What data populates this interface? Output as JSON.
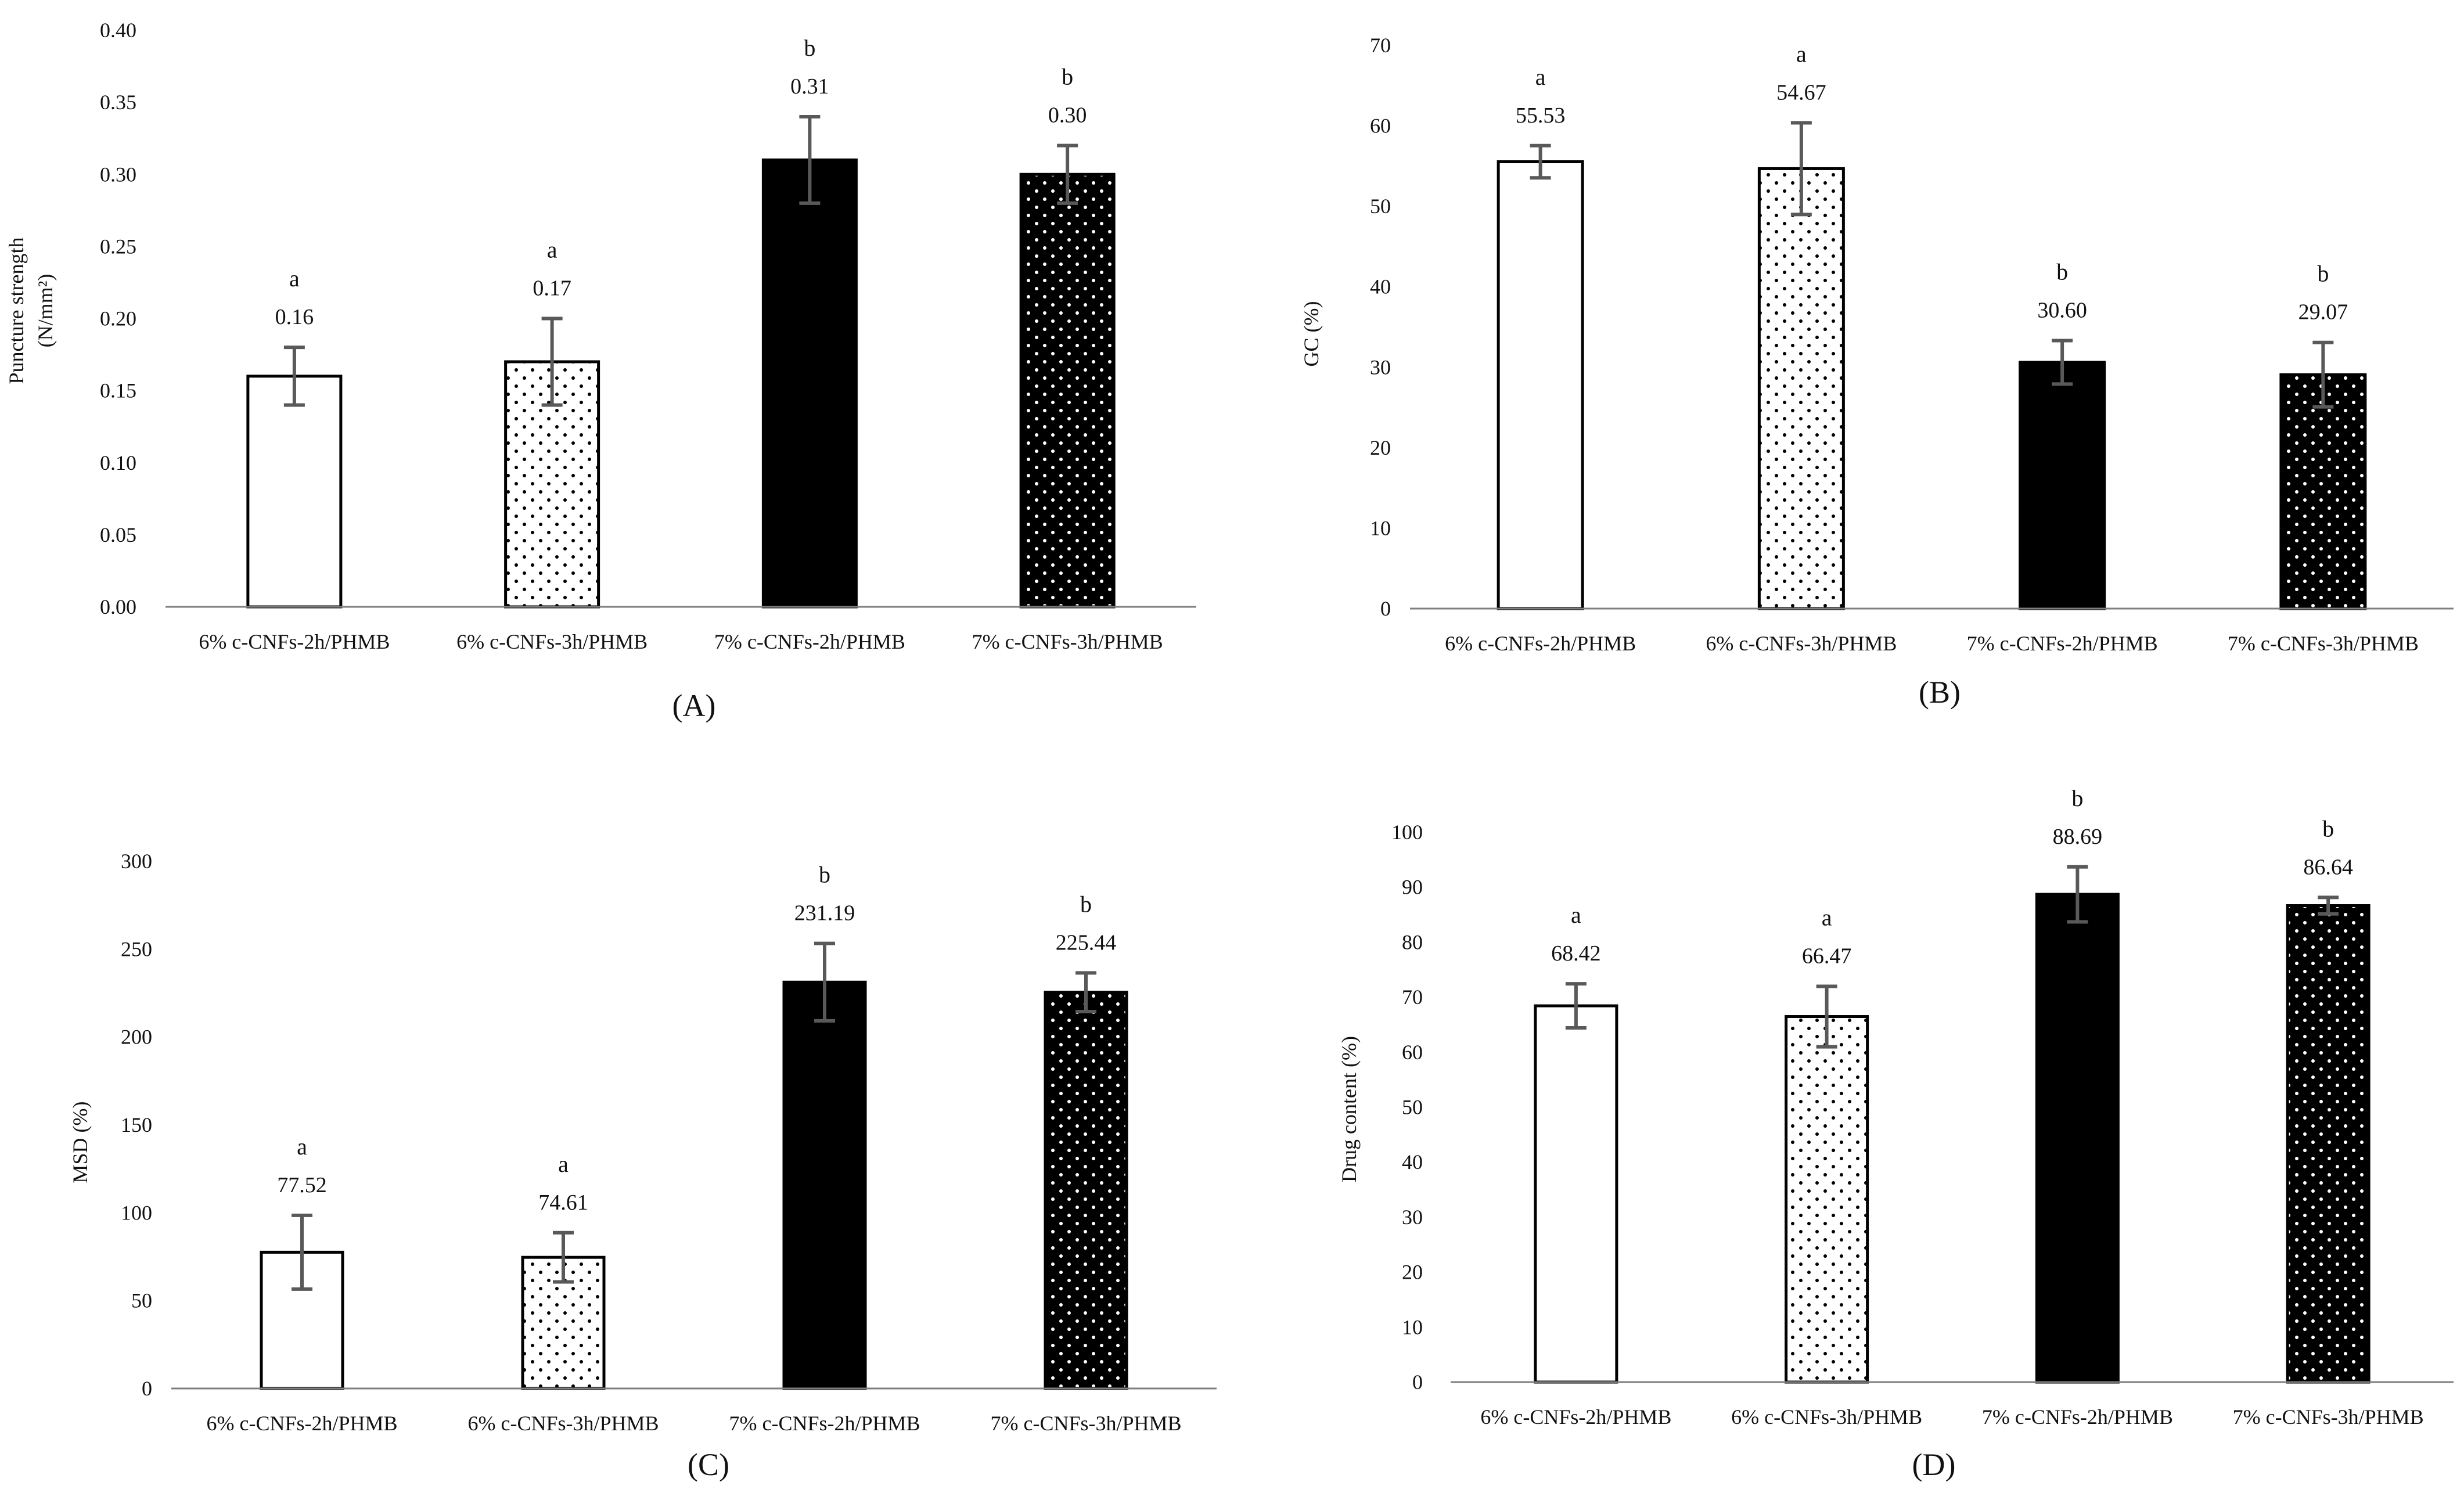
{
  "colors": {
    "axis": "#7f7f7f",
    "errorbar": "#595959",
    "bar_fill_solid": "#000000",
    "bar_fill_open": "#ffffff",
    "dots_on_white": "#000000",
    "dots_on_black": "#ffffff"
  },
  "bar_patterns": [
    "open",
    "dotted",
    "solid",
    "solid-dotted"
  ],
  "chart_data": [
    {
      "type": "bar",
      "panel_label": "(A)",
      "panel_letter": "A",
      "ylabel": "Puncture strength (N/mm²)",
      "ylabel_main": "Puncture strength",
      "ylabel_unit": "(N/mm²)",
      "categories": [
        "6% c-CNFs-2h/PHMB",
        "6% c-CNFs-3h/PHMB",
        "7% c-CNFs-2h/PHMB",
        "7% c-CNFs-3h/PHMB"
      ],
      "values": [
        0.16,
        0.17,
        0.31,
        0.3
      ],
      "value_labels": [
        "0.16",
        "0.17",
        "0.31",
        "0.30"
      ],
      "errors": [
        0.02,
        0.03,
        0.03,
        0.02
      ],
      "significance": [
        "a",
        "a",
        "b",
        "b"
      ],
      "ylim": [
        0,
        0.4
      ],
      "yticks": [
        "0.00",
        "0.05",
        "0.10",
        "0.15",
        "0.20",
        "0.25",
        "0.30",
        "0.35",
        "0.40"
      ]
    },
    {
      "type": "bar",
      "panel_label": "(B)",
      "panel_letter": "B",
      "ylabel": "GC (%)",
      "categories": [
        "6% c-CNFs-2h/PHMB",
        "6% c-CNFs-3h/PHMB",
        "7% c-CNFs-2h/PHMB",
        "7% c-CNFs-3h/PHMB"
      ],
      "values": [
        55.53,
        54.67,
        30.6,
        29.07
      ],
      "value_labels": [
        "55.53",
        "54.67",
        "30.60",
        "29.07"
      ],
      "errors": [
        2.0,
        5.7,
        2.7,
        4.0
      ],
      "significance": [
        "a",
        "a",
        "b",
        "b"
      ],
      "ylim": [
        0,
        70
      ],
      "yticks": [
        "0",
        "10",
        "20",
        "30",
        "40",
        "50",
        "60",
        "70"
      ]
    },
    {
      "type": "bar",
      "panel_label": "(C)",
      "panel_letter": "C",
      "ylabel": "MSD (%)",
      "categories": [
        "6% c-CNFs-2h/PHMB",
        "6% c-CNFs-3h/PHMB",
        "7% c-CNFs-2h/PHMB",
        "7% c-CNFs-3h/PHMB"
      ],
      "values": [
        77.52,
        74.61,
        231.19,
        225.44
      ],
      "value_labels": [
        "77.52",
        "74.61",
        "231.19",
        "225.44"
      ],
      "errors": [
        21,
        14,
        22,
        11
      ],
      "significance": [
        "a",
        "a",
        "b",
        "b"
      ],
      "ylim": [
        0,
        300
      ],
      "yticks": [
        "0",
        "50",
        "100",
        "150",
        "200",
        "250",
        "300"
      ]
    },
    {
      "type": "bar",
      "panel_label": "(D)",
      "panel_letter": "D",
      "ylabel": "Drug content (%)",
      "categories": [
        "6% c-CNFs-2h/PHMB",
        "6% c-CNFs-3h/PHMB",
        "7% c-CNFs-2h/PHMB",
        "7% c-CNFs-3h/PHMB"
      ],
      "values": [
        68.42,
        66.47,
        88.69,
        86.64
      ],
      "value_labels": [
        "68.42",
        "66.47",
        "88.69",
        "86.64"
      ],
      "errors": [
        4,
        5.5,
        5,
        1.5
      ],
      "significance": [
        "a",
        "a",
        "b",
        "b"
      ],
      "ylim": [
        0,
        100
      ],
      "yticks": [
        "0",
        "10",
        "20",
        "30",
        "40",
        "50",
        "60",
        "70",
        "80",
        "90",
        "100"
      ]
    }
  ]
}
